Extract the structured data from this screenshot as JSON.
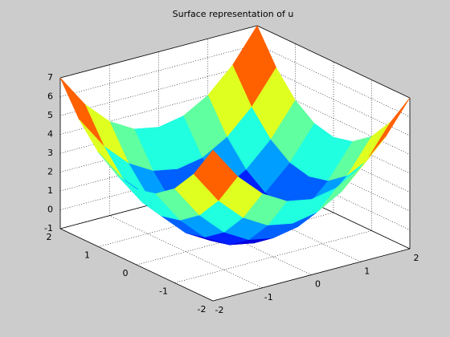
{
  "chart_data": {
    "type": "surface",
    "title": "Surface representation of u",
    "x": [
      -2,
      -1.5,
      -1,
      -0.5,
      0,
      0.5,
      1,
      1.5,
      2
    ],
    "y": [
      -2,
      -1.5,
      -1,
      -0.5,
      0,
      0.5,
      1,
      1.5,
      2
    ],
    "z": [
      [
        7,
        5.25,
        4,
        3.25,
        3,
        3.25,
        4,
        5.25,
        7
      ],
      [
        5.25,
        3.5,
        2.25,
        1.5,
        1.25,
        1.5,
        2.25,
        3.5,
        5.25
      ],
      [
        4,
        2.25,
        1,
        0.25,
        0,
        0.25,
        1,
        2.25,
        4
      ],
      [
        3.25,
        1.5,
        0.25,
        -0.5,
        -0.75,
        -0.5,
        0.25,
        1.5,
        3.25
      ],
      [
        3,
        1.25,
        0,
        -0.75,
        -1,
        -0.75,
        0,
        1.25,
        3
      ],
      [
        3.25,
        1.5,
        0.25,
        -0.5,
        -0.75,
        -0.5,
        0.25,
        1.5,
        3.25
      ],
      [
        4,
        2.25,
        1,
        0.25,
        0,
        0.25,
        1,
        2.25,
        4
      ],
      [
        5.25,
        3.5,
        2.25,
        1.5,
        1.25,
        1.5,
        2.25,
        3.5,
        5.25
      ],
      [
        7,
        5.25,
        4,
        3.25,
        3,
        3.25,
        4,
        5.25,
        7
      ]
    ],
    "colormap": "jet",
    "xlim": [
      -2,
      2
    ],
    "ylim": [
      -2,
      2
    ],
    "zlim": [
      -1,
      7
    ],
    "xticks": [
      -2,
      -1,
      0,
      1,
      2
    ],
    "yticks": [
      -2,
      -1,
      0,
      1,
      2
    ],
    "zticks": [
      -1,
      0,
      1,
      2,
      3,
      4,
      5,
      6,
      7
    ],
    "grid": true
  }
}
